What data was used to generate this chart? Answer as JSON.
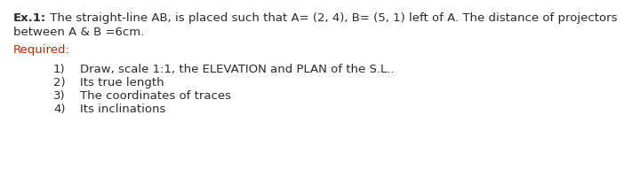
{
  "background_color": "#ffffff",
  "text_color": "#2a2a2a",
  "required_color": "#cc2200",
  "bold_part": "Ex.1:",
  "normal_part": " The straight-line AB, is placed such that A= (2, 4), B= (5, 1) left of A. The distance of projectors",
  "line2": "between A & B =6cm.",
  "required_label": "Required:",
  "items": [
    "Draw, scale 1:1, the ELEVATION and PLAN of the S.L..",
    "Its true length",
    "The coordinates of traces",
    "Its inclinations"
  ],
  "item_numbers": [
    "1)",
    "2)",
    "3)",
    "4)"
  ],
  "font_size": 9.5,
  "fig_width": 7.2,
  "fig_height": 1.91,
  "dpi": 100
}
